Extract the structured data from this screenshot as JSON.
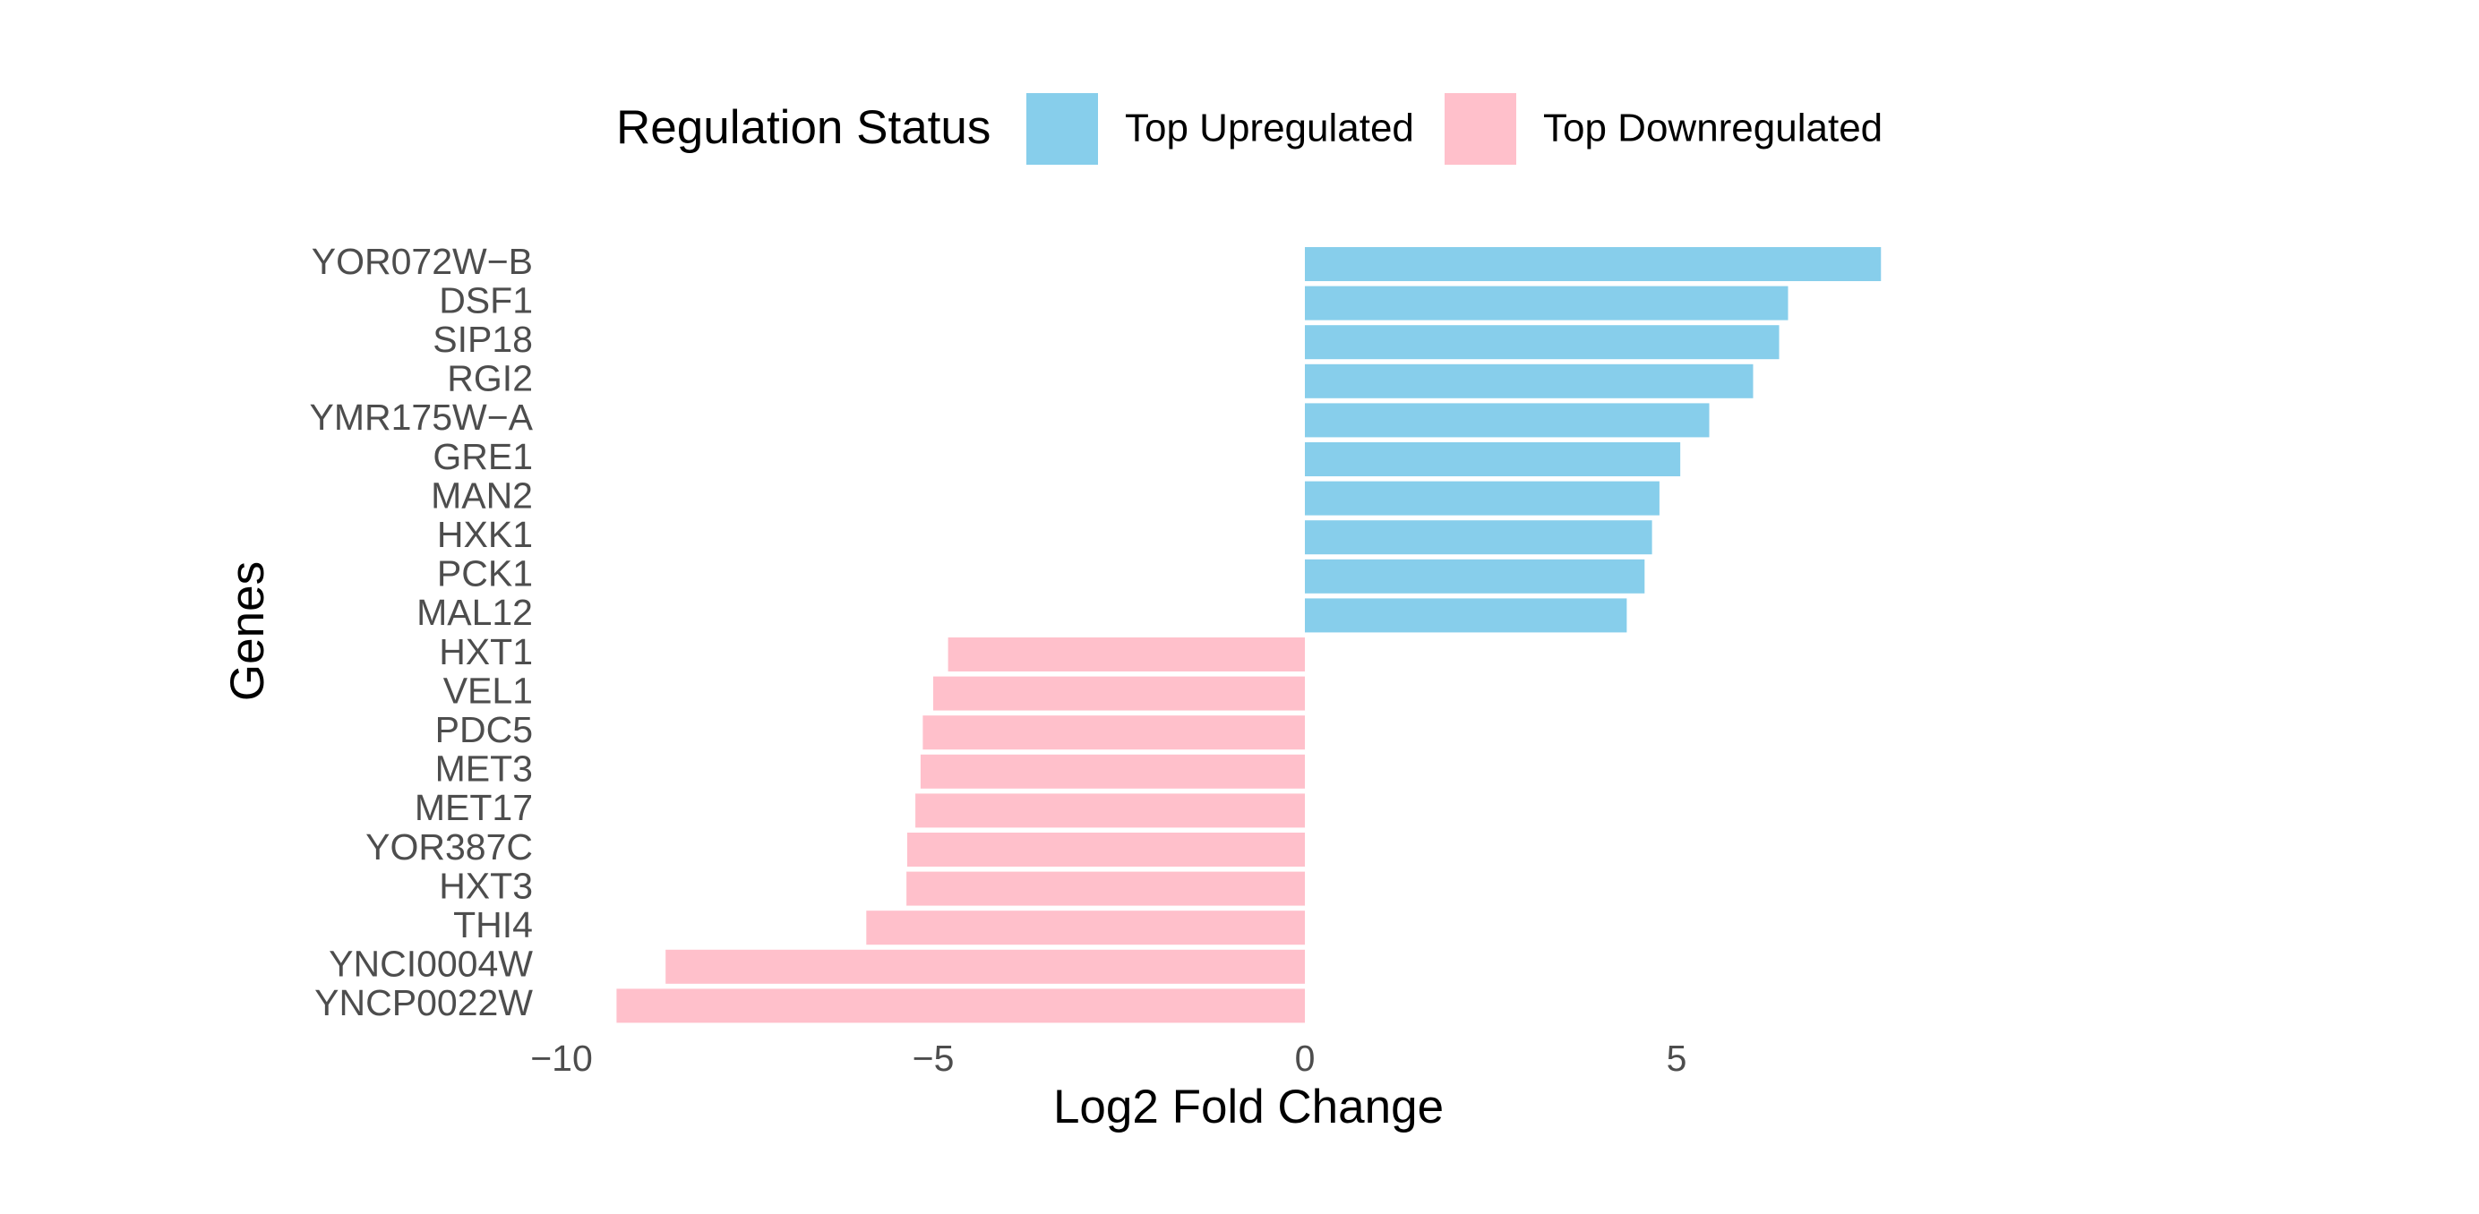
{
  "chart_data": {
    "type": "bar",
    "orientation": "horizontal",
    "xlabel": "Log2 Fold Change",
    "ylabel": "Genes",
    "xlim": [
      -10.2,
      9.0
    ],
    "x_ticks": [
      -10,
      -5,
      0,
      5
    ],
    "x_tick_labels": [
      "−10",
      "−5",
      "0",
      "5"
    ],
    "grid": false,
    "legend": {
      "title": "Regulation Status",
      "position": "top",
      "items": [
        {
          "label": "Top Upregulated",
          "color": "#87CEEB"
        },
        {
          "label": "Top Downregulated",
          "color": "#FFC0CB"
        }
      ]
    },
    "categories": [
      "YOR072W−B",
      "DSF1",
      "SIP18",
      "RGI2",
      "YMR175W−A",
      "GRE1",
      "MAN2",
      "HXK1",
      "PCK1",
      "MAL12",
      "HXT1",
      "VEL1",
      "PDC5",
      "MET3",
      "MET17",
      "YOR387C",
      "HXT3",
      "THI4",
      "YNCI0004W",
      "YNCP0022W"
    ],
    "values": [
      7.75,
      6.5,
      6.38,
      6.03,
      5.44,
      5.05,
      4.77,
      4.67,
      4.57,
      4.33,
      -4.8,
      -5.0,
      -5.14,
      -5.17,
      -5.24,
      -5.35,
      -5.36,
      -5.9,
      -8.6,
      -9.26
    ],
    "groups": [
      "Top Upregulated",
      "Top Upregulated",
      "Top Upregulated",
      "Top Upregulated",
      "Top Upregulated",
      "Top Upregulated",
      "Top Upregulated",
      "Top Upregulated",
      "Top Upregulated",
      "Top Upregulated",
      "Top Downregulated",
      "Top Downregulated",
      "Top Downregulated",
      "Top Downregulated",
      "Top Downregulated",
      "Top Downregulated",
      "Top Downregulated",
      "Top Downregulated",
      "Top Downregulated",
      "Top Downregulated"
    ]
  }
}
